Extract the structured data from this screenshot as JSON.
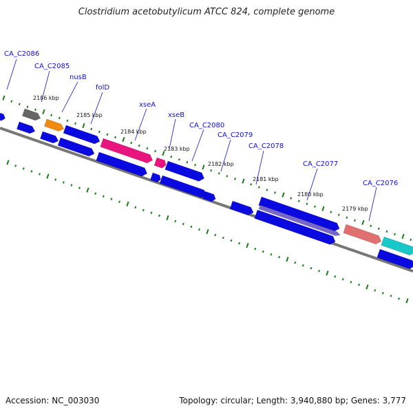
{
  "title": "Clostridium acetobutylicum ATCC 824, complete genome",
  "footer": {
    "accession": "Accession: NC_003030",
    "summary": "Topology: circular; Length: 3,940,880 bp; Genes: 3,777"
  },
  "colors": {
    "cds_blue": "#0a0ae0",
    "backbone": "#777777",
    "tick_green": "#1a7a1a",
    "label_blue": "#1010cc",
    "gray_feature": "#666666",
    "orange_feature": "#f08a10",
    "magenta_feature": "#e8157e",
    "violet_feature": "#7766cc",
    "salmon_feature": "#e07070",
    "cyan_feature": "#18c8c8"
  },
  "gene_labels": [
    "CA_C2086",
    "CA_C2085",
    "nusB",
    "folD",
    "xseA",
    "xseB",
    "CA_C2080",
    "CA_C2079",
    "CA_C2078",
    "CA_C2077",
    "CA_C2076"
  ],
  "kbp_labels": [
    "2186 kbp",
    "2185 kbp",
    "2184 kbp",
    "2183 kbp",
    "2182 kbp",
    "2181 kbp",
    "2180 kbp",
    "2179 kbp"
  ]
}
